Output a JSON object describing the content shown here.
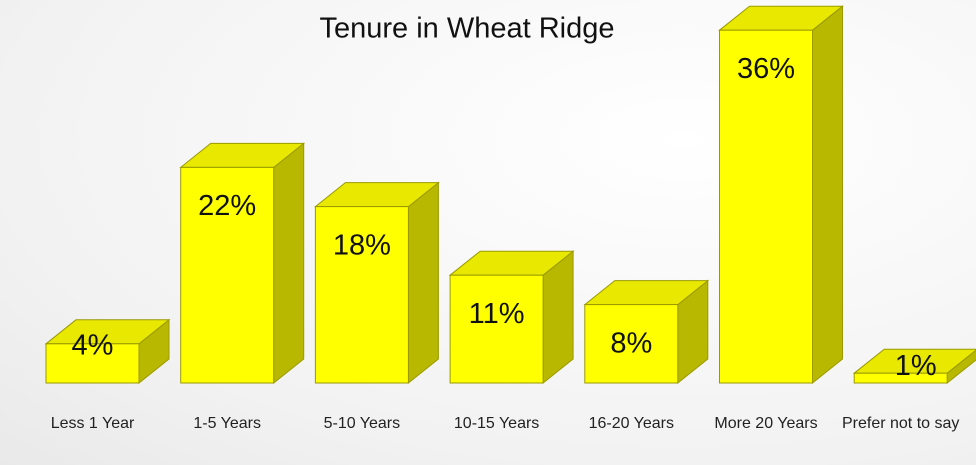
{
  "chart_data": {
    "type": "bar3d",
    "title": "Tenure in Wheat Ridge",
    "categories": [
      "Less 1 Year",
      "1-5 Years",
      "5-10 Years",
      "10-15 Years",
      "16-20 Years",
      "More 20 Years",
      "Prefer not to say"
    ],
    "values": [
      4,
      22,
      18,
      11,
      8,
      36,
      1
    ],
    "value_labels": [
      "4%",
      "22%",
      "18%",
      "11%",
      "8%",
      "36%",
      "1%"
    ],
    "color": "#ffff00"
  }
}
